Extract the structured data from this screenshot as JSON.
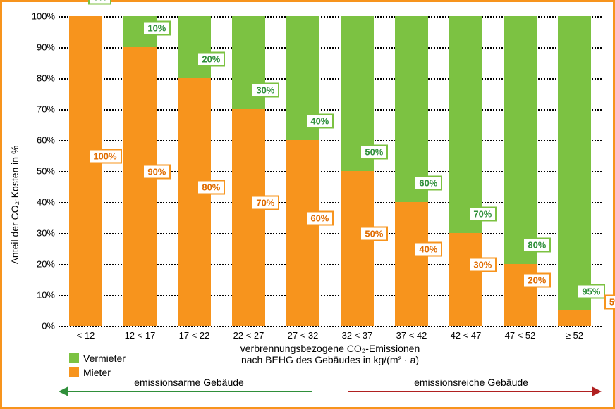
{
  "chart": {
    "type": "stacked-bar",
    "ylabel": "Anteil der CO₂-Kosten  in %",
    "xlabel_top": "verbrennungsbezogene  CO₂-Emissionen",
    "xlabel_bottom": "nach BEHG des Gebäudes in kg/(m² · a)",
    "ylim": [
      0,
      100
    ],
    "ytick_step": 10,
    "categories": [
      "< 12",
      "12 < 17",
      "17 < 22",
      "22 < 27",
      "27 < 32",
      "32 < 37",
      "37 < 42",
      "42 < 47",
      "47 < 52",
      "≥ 52"
    ],
    "series": {
      "vermieter": {
        "label": "Vermieter",
        "color": "#7cc242",
        "values": [
          0,
          10,
          20,
          30,
          40,
          50,
          60,
          70,
          80,
          95
        ]
      },
      "mieter": {
        "label": "Mieter",
        "color": "#f7941d",
        "values": [
          100,
          90,
          80,
          70,
          60,
          50,
          40,
          30,
          20,
          5
        ]
      }
    },
    "grid_color": "#000000",
    "background_color": "#ffffff",
    "label_box_border_vermieter": "#7cc242",
    "label_box_border_mieter": "#f7941d",
    "label_box_text_vermieter": "#2f8f3a",
    "label_box_text_mieter": "#e06c00",
    "annotations": {
      "left": {
        "text": "emissionsarme Gebäude",
        "color": "#2f8f3a"
      },
      "right": {
        "text": "emissionsreiche Gebäude",
        "color": "#b02020"
      }
    }
  }
}
